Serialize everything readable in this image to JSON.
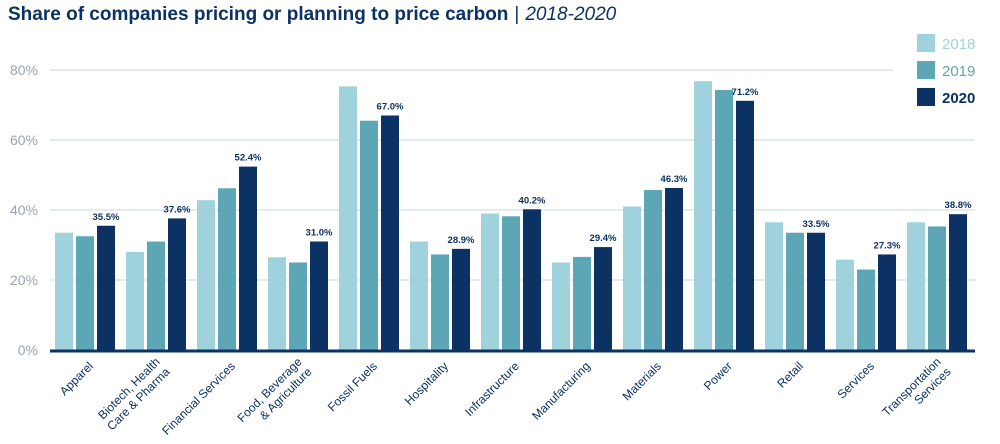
{
  "title": {
    "main": "Share of companies pricing or planning to price carbon",
    "separator": "|",
    "years": "2018-2020"
  },
  "colors": {
    "2018": "#9fd2dd",
    "2019": "#5ca6b6",
    "2020": "#0b3263",
    "grid": "#d9e6ec",
    "axis": "#0b3263"
  },
  "chart_data": {
    "type": "bar",
    "ylim": [
      0,
      80
    ],
    "yticks": [
      {
        "value": 0,
        "label": "0%"
      },
      {
        "value": 20,
        "label": "20%"
      },
      {
        "value": 40,
        "label": "40%"
      },
      {
        "value": 60,
        "label": "60%"
      },
      {
        "value": 80,
        "label": "80%"
      }
    ],
    "grid": true,
    "legend_position": "top-right",
    "categories": [
      [
        "Apparel"
      ],
      [
        "Biotech, Health",
        "Care & Pharma"
      ],
      [
        "Financial Services"
      ],
      [
        "Food, Beverage",
        "& Agriculture"
      ],
      [
        "Fossil Fuels"
      ],
      [
        "Hospitality"
      ],
      [
        "Infrastructure"
      ],
      [
        "Manufacturing"
      ],
      [
        "Materials"
      ],
      [
        "Power"
      ],
      [
        "Retail"
      ],
      [
        "Services"
      ],
      [
        "Transportation",
        "Services"
      ]
    ],
    "series": [
      {
        "name": "2018",
        "values": [
          33.5,
          28,
          42.8,
          26.5,
          75.3,
          31,
          39,
          25,
          41,
          76.8,
          36.5,
          25.8,
          36.5
        ]
      },
      {
        "name": "2019",
        "values": [
          32.5,
          31,
          46.2,
          25,
          65.5,
          27.3,
          38.2,
          26.6,
          45.7,
          74.3,
          33.5,
          23,
          35.3
        ]
      },
      {
        "name": "2020",
        "values": [
          35.5,
          37.6,
          52.4,
          31.0,
          67.0,
          28.9,
          40.2,
          29.4,
          46.3,
          71.2,
          33.5,
          27.3,
          38.8
        ]
      }
    ],
    "data_labels_2020": [
      "35.5%",
      "37.6%",
      "52.4%",
      "31.0%",
      "67.0%",
      "28.9%",
      "40.2%",
      "29.4%",
      "46.3%",
      "71.2%",
      "33.5%",
      "27.3%",
      "38.8%"
    ]
  }
}
